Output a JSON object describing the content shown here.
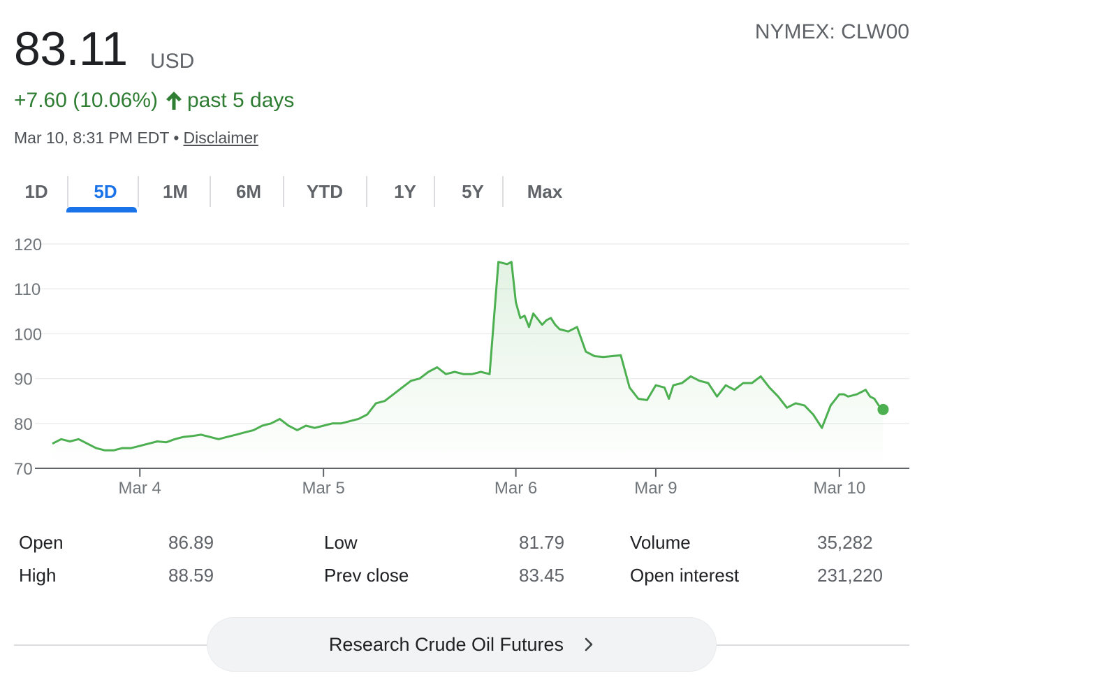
{
  "quote": {
    "price": "83.11",
    "currency": "USD",
    "exchange": "NYMEX: CLW00",
    "change_text": "+7.60 (10.06%)",
    "period_text": "past 5 days",
    "timestamp": "Mar 10, 8:31 PM EDT",
    "separator": "•",
    "disclaimer": "Disclaimer",
    "up_color": "#2e7d32",
    "arrow_icon": "arrow-up-icon"
  },
  "tabs": [
    {
      "label": "1D",
      "active": false
    },
    {
      "label": "5D",
      "active": true
    },
    {
      "label": "1M",
      "active": false
    },
    {
      "label": "6M",
      "active": false
    },
    {
      "label": "YTD",
      "active": false
    },
    {
      "label": "1Y",
      "active": false
    },
    {
      "label": "5Y",
      "active": false
    },
    {
      "label": "Max",
      "active": false
    }
  ],
  "chart_data": {
    "type": "area",
    "title": "",
    "xlabel": "",
    "ylabel": "",
    "ylim": [
      70,
      120
    ],
    "yticks": [
      70,
      80,
      90,
      100,
      110,
      120
    ],
    "xticks": [
      {
        "label": "Mar 4",
        "at": 0.12
      },
      {
        "label": "Mar 5",
        "at": 0.33
      },
      {
        "label": "Mar 6",
        "at": 0.55
      },
      {
        "label": "Mar 9",
        "at": 0.71
      },
      {
        "label": "Mar 10",
        "at": 0.92
      }
    ],
    "grid": true,
    "color": "#4caf50",
    "series": [
      {
        "x": [
          0.02,
          0.03,
          0.04,
          0.05,
          0.06,
          0.07,
          0.08,
          0.09,
          0.1,
          0.11,
          0.12,
          0.13,
          0.14,
          0.15,
          0.16,
          0.17,
          0.18,
          0.19,
          0.2,
          0.21,
          0.22,
          0.23,
          0.24,
          0.25,
          0.26,
          0.27,
          0.28,
          0.29,
          0.3,
          0.31,
          0.32,
          0.33,
          0.34,
          0.35,
          0.36,
          0.37,
          0.38,
          0.39,
          0.4,
          0.41,
          0.42,
          0.43,
          0.44,
          0.45,
          0.46,
          0.47,
          0.48,
          0.49,
          0.5,
          0.51,
          0.52,
          0.53,
          0.54,
          0.545,
          0.55,
          0.555,
          0.56,
          0.565,
          0.57,
          0.58,
          0.585,
          0.59,
          0.595,
          0.6,
          0.61,
          0.62,
          0.63,
          0.64,
          0.65,
          0.66,
          0.67,
          0.68,
          0.69,
          0.7,
          0.71,
          0.72,
          0.725,
          0.73,
          0.74,
          0.75,
          0.76,
          0.77,
          0.78,
          0.79,
          0.8,
          0.81,
          0.82,
          0.83,
          0.84,
          0.85,
          0.86,
          0.87,
          0.88,
          0.89,
          0.9,
          0.91,
          0.92,
          0.925,
          0.93,
          0.94,
          0.95,
          0.955,
          0.96,
          0.965,
          0.97
        ],
        "values": [
          75.5,
          76.5,
          76.0,
          76.5,
          75.5,
          74.5,
          74.0,
          74.0,
          74.5,
          74.5,
          75.0,
          75.5,
          76.0,
          75.8,
          76.5,
          77.0,
          77.2,
          77.5,
          77.0,
          76.5,
          77.0,
          77.5,
          78.0,
          78.5,
          79.5,
          80.0,
          81.0,
          79.5,
          78.5,
          79.5,
          79.0,
          79.5,
          80.0,
          80.0,
          80.5,
          81.0,
          82.0,
          84.5,
          85.0,
          86.5,
          88.0,
          89.5,
          90.0,
          91.5,
          92.5,
          91.0,
          91.5,
          91.0,
          91.0,
          91.5,
          91.0,
          116.0,
          115.5,
          116.0,
          107.0,
          103.5,
          104.0,
          101.5,
          104.5,
          102.0,
          103.0,
          103.5,
          102.0,
          101.0,
          100.5,
          101.5,
          96.0,
          95.0,
          94.8,
          95.0,
          95.2,
          88.0,
          85.5,
          85.2,
          88.5,
          88.0,
          85.5,
          88.5,
          89.0,
          90.5,
          89.5,
          89.0,
          86.0,
          88.5,
          87.5,
          89.0,
          89.0,
          90.5,
          88.0,
          86.0,
          83.5,
          84.5,
          84.0,
          82.0,
          79.0,
          84.0,
          86.5,
          86.5,
          86.0,
          86.5,
          87.5,
          86.0,
          85.5,
          84.0,
          83.11
        ]
      }
    ]
  },
  "stats": [
    {
      "label": "Open",
      "value": "86.89"
    },
    {
      "label": "High",
      "value": "88.59"
    },
    {
      "label": "Low",
      "value": "81.79"
    },
    {
      "label": "Prev close",
      "value": "83.45"
    },
    {
      "label": "Volume",
      "value": "35,282"
    },
    {
      "label": "Open interest",
      "value": "231,220"
    }
  ],
  "research_button": {
    "label": "Research Crude Oil Futures",
    "icon": "chevron-right-icon"
  }
}
